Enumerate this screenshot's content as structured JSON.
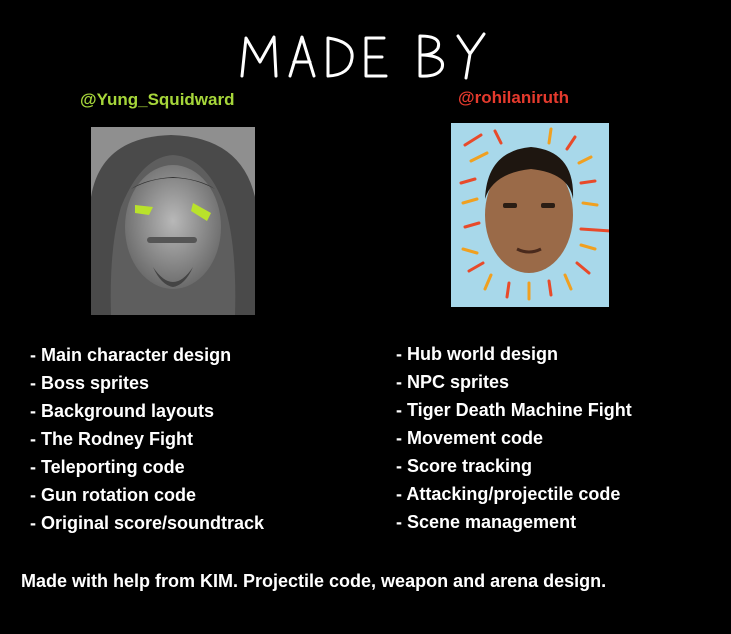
{
  "title": "MADE BY",
  "colors": {
    "background": "#000000",
    "left_handle": "#a6d63a",
    "right_handle": "#e53a2d",
    "text": "#ffffff"
  },
  "left": {
    "handle": "@Yung_Squidward",
    "credits": [
      "- Main character design",
      "- Boss sprites",
      "- Background layouts",
      "- The Rodney Fight",
      "- Teleporting code",
      "- Gun rotation code",
      "- Original score/soundtrack"
    ]
  },
  "right": {
    "handle": "@rohilaniruth",
    "credits": [
      "- Hub world design",
      "- NPC sprites",
      "- Tiger Death Machine Fight",
      "- Movement code",
      "- Score tracking",
      "- Attacking/projectile code",
      "- Scene management"
    ]
  },
  "footer": "Made with help from KIM. Projectile code, weapon and arena design."
}
